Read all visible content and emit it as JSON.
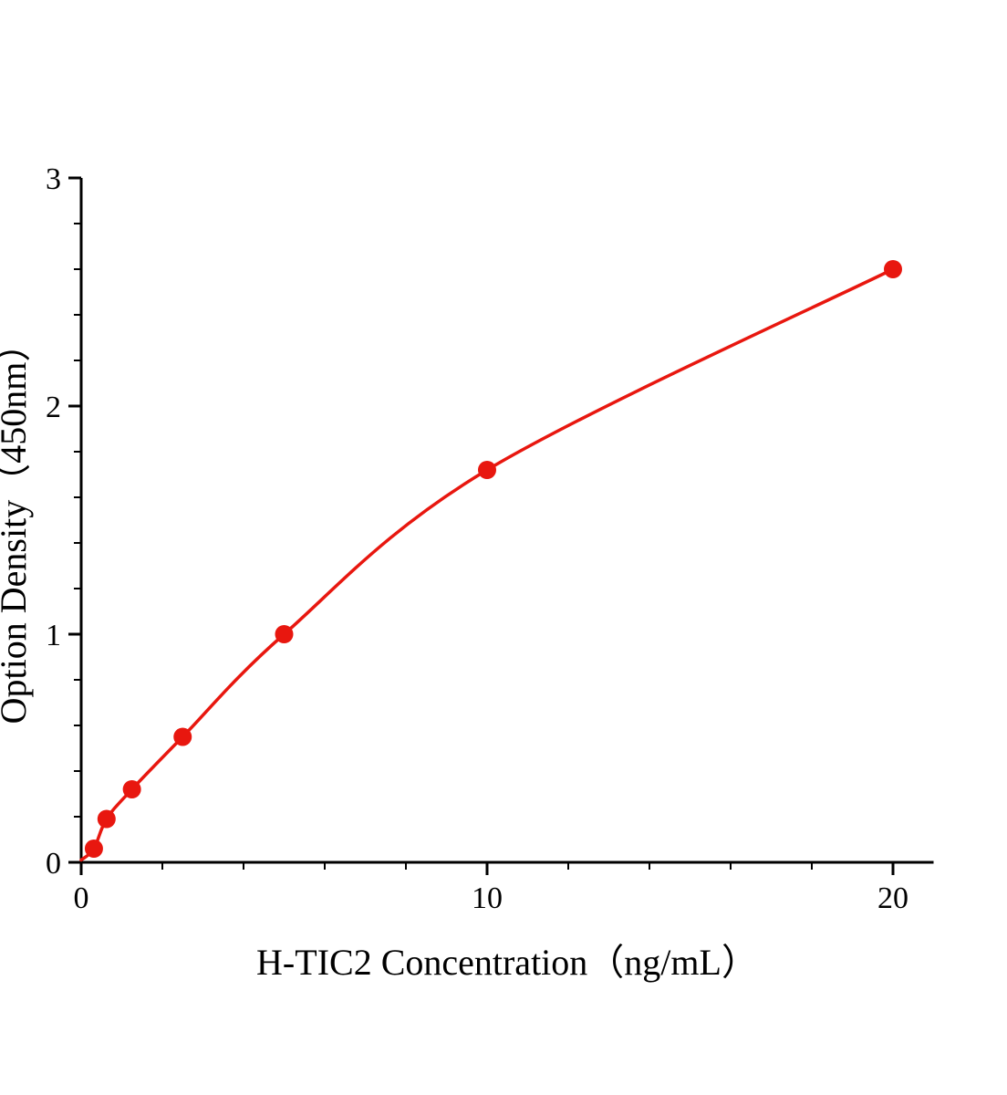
{
  "chart_data": {
    "type": "line",
    "title": "",
    "xlabel": "H-TIC2 Concentration（ng/mL）",
    "ylabel": "Option Density（450nm）",
    "series": [
      {
        "name": "standard-curve",
        "x": [
          0.313,
          0.625,
          1.25,
          2.5,
          5,
          10,
          20
        ],
        "y": [
          0.06,
          0.19,
          0.32,
          0.55,
          1.0,
          1.72,
          2.6
        ]
      }
    ],
    "curve_origin": {
      "x": 0,
      "y": 0.01
    },
    "xlim": [
      0,
      21
    ],
    "ylim": [
      0,
      3
    ],
    "x_major_ticks": [
      0,
      10,
      20
    ],
    "y_major_ticks": [
      0,
      1,
      2,
      3
    ],
    "x_minor_step": 2,
    "y_minor_step": 0.2,
    "grid": false,
    "legend_position": "none",
    "line_color": "#e8170f",
    "marker_color": "#e8170f",
    "axis_color": "#000000",
    "marker_radius": 10
  }
}
